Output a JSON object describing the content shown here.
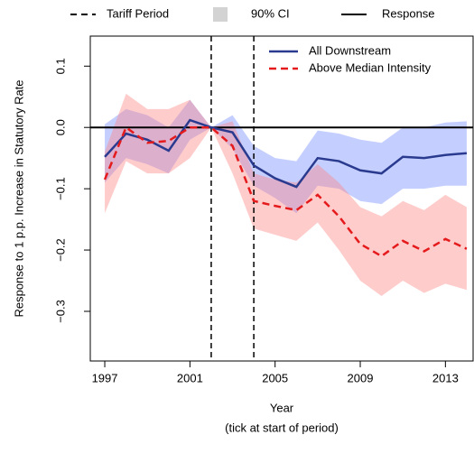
{
  "chart_data": {
    "type": "line",
    "ylabel": "Response to 1 p.p. Increase in Statutory Rate",
    "xlabel": "Year",
    "xlabel_note": "(tick at start of period)",
    "x": [
      1997,
      1998,
      1999,
      2000,
      2001,
      2002,
      2003,
      2004,
      2005,
      2006,
      2007,
      2008,
      2009,
      2010,
      2011,
      2012,
      2013,
      2014
    ],
    "xlim": [
      1996.32,
      2014.3
    ],
    "xticks": [
      1997,
      2001,
      2005,
      2009,
      2013
    ],
    "ylim": [
      -0.381,
      0.149
    ],
    "yticks": [
      {
        "value": -0.3,
        "label": "−0.3"
      },
      {
        "value": -0.2,
        "label": "−0.2"
      },
      {
        "value": -0.1,
        "label": "−0.1"
      },
      {
        "value": 0,
        "label": "0.0"
      },
      0.1
    ],
    "vlines": [
      2002,
      2004
    ],
    "hline": 0,
    "key_legend": [
      {
        "label": "Tariff Period",
        "style": "dashed"
      },
      {
        "label": "90% CI",
        "style": "box"
      },
      {
        "label": "Response",
        "style": "solid"
      }
    ],
    "legend": "top-right",
    "series": [
      {
        "name": "All Downstream",
        "color": "#2a3b8f",
        "ci_color": "#6f86ff",
        "dashed": false,
        "values": [
          -0.048,
          -0.01,
          -0.02,
          -0.038,
          0.012,
          0,
          -0.008,
          -0.062,
          -0.083,
          -0.097,
          -0.05,
          -0.055,
          -0.07,
          -0.075,
          -0.048,
          -0.05,
          -0.045,
          -0.042
        ],
        "ci_upper": [
          0.005,
          0.03,
          0.02,
          0.0,
          0.045,
          0,
          0.02,
          -0.03,
          -0.05,
          -0.055,
          -0.005,
          -0.01,
          -0.02,
          -0.025,
          0.0,
          0.0,
          0.008,
          0.01
        ],
        "ci_lower": [
          -0.09,
          -0.05,
          -0.06,
          -0.075,
          -0.02,
          0,
          -0.035,
          -0.095,
          -0.115,
          -0.14,
          -0.095,
          -0.1,
          -0.12,
          -0.125,
          -0.1,
          -0.1,
          -0.095,
          -0.095
        ]
      },
      {
        "name": "Above Median Intensity",
        "color": "#e41a1c",
        "ci_color": "#ff7f7f",
        "dashed": true,
        "values": [
          -0.085,
          0.0,
          -0.025,
          -0.022,
          0.0,
          0.0,
          -0.03,
          -0.12,
          -0.128,
          -0.135,
          -0.11,
          -0.145,
          -0.19,
          -0.21,
          -0.185,
          -0.202,
          -0.182,
          -0.198
        ],
        "ci_upper": [
          -0.04,
          0.055,
          0.03,
          0.03,
          0.045,
          0,
          0.01,
          -0.075,
          -0.085,
          -0.09,
          -0.06,
          -0.09,
          -0.13,
          -0.145,
          -0.12,
          -0.135,
          -0.11,
          -0.13
        ],
        "ci_lower": [
          -0.14,
          -0.055,
          -0.075,
          -0.075,
          -0.05,
          0,
          -0.075,
          -0.165,
          -0.175,
          -0.185,
          -0.155,
          -0.2,
          -0.25,
          -0.275,
          -0.25,
          -0.27,
          -0.255,
          -0.265
        ]
      }
    ]
  }
}
